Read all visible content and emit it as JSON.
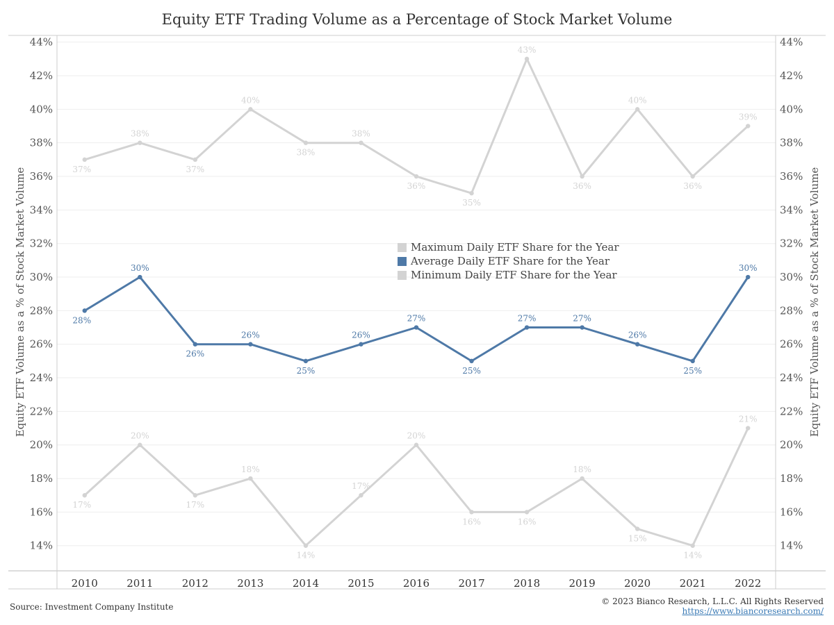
{
  "chart_data": {
    "type": "line",
    "title": "Equity ETF Trading Volume as a Percentage of Stock Market Volume",
    "ylabel": "Equity ETF Volume as a % of Stock Market Volume",
    "ylabel_right": "Equity ETF Volume as a % of Stock Market Volume",
    "xlabel": "",
    "x": [
      "2010",
      "2011",
      "2012",
      "2013",
      "2014",
      "2015",
      "2016",
      "2017",
      "2018",
      "2019",
      "2020",
      "2021",
      "2022"
    ],
    "ylim": [
      12.5,
      44.4
    ],
    "yticks": [
      "14%",
      "16%",
      "18%",
      "20%",
      "22%",
      "24%",
      "26%",
      "28%",
      "30%",
      "32%",
      "34%",
      "36%",
      "38%",
      "40%",
      "42%",
      "44%"
    ],
    "grid": true,
    "legend_position": "center",
    "series": [
      {
        "name": "Maximum Daily ETF Share for the Year",
        "color": "#d3d3d3",
        "values": [
          37,
          38,
          37,
          40,
          38,
          38,
          36,
          35,
          43,
          36,
          40,
          36,
          39
        ],
        "labels": [
          "37%",
          "38%",
          "37%",
          "40%",
          "38%",
          "38%",
          "36%",
          "35%",
          "43%",
          "36%",
          "40%",
          "36%",
          "39%"
        ]
      },
      {
        "name": "Average Daily ETF Share for the Year",
        "color": "#4e79a7",
        "values": [
          28,
          30,
          26,
          26,
          25,
          26,
          27,
          25,
          27,
          27,
          26,
          25,
          30
        ],
        "labels": [
          "28%",
          "30%",
          "26%",
          "26%",
          "25%",
          "26%",
          "27%",
          "25%",
          "27%",
          "27%",
          "26%",
          "25%",
          "30%"
        ]
      },
      {
        "name": "Minimum Daily ETF Share for the Year",
        "color": "#d3d3d3",
        "values": [
          17,
          20,
          17,
          18,
          14,
          17,
          20,
          16,
          16,
          18,
          15,
          14,
          21
        ],
        "labels": [
          "17%",
          "20%",
          "17%",
          "18%",
          "14%",
          "17%",
          "20%",
          "16%",
          "16%",
          "18%",
          "15%",
          "14%",
          "21%"
        ]
      }
    ]
  },
  "footer": {
    "source": "Source: Investment Company Institute",
    "copyright": "© 2023 Bianco Research, L.L.C. All Rights Reserved",
    "website": "https://www.biancoresearch.com/"
  }
}
